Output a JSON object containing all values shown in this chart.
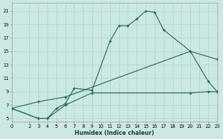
{
  "xlabel": "Humidex (Indice chaleur)",
  "bg_color": "#cce8e4",
  "grid_color": "#aacfcb",
  "line_color": "#1a6b5a",
  "xlim": [
    0,
    23
  ],
  "ylim": [
    4.5,
    22.2
  ],
  "xticks": [
    0,
    2,
    3,
    4,
    5,
    6,
    7,
    8,
    9,
    10,
    11,
    12,
    13,
    14,
    15,
    16,
    17,
    18,
    19,
    20,
    21,
    22,
    23
  ],
  "yticks": [
    5,
    7,
    9,
    11,
    13,
    15,
    17,
    19,
    21
  ],
  "line1_x": [
    0,
    3,
    4,
    5,
    6,
    7,
    9,
    11,
    12,
    13,
    14,
    15,
    16,
    17,
    20,
    22,
    23
  ],
  "line1_y": [
    6.5,
    5.0,
    5.0,
    6.5,
    7.2,
    9.5,
    9.2,
    16.5,
    18.8,
    18.8,
    19.8,
    21.0,
    20.8,
    18.2,
    15.0,
    10.5,
    9.0
  ],
  "line2_x": [
    0,
    3,
    6,
    20,
    23
  ],
  "line2_y": [
    6.5,
    7.5,
    8.2,
    15.0,
    13.8
  ],
  "line3_x": [
    0,
    3,
    4,
    6,
    9,
    20,
    22,
    23
  ],
  "line3_y": [
    6.5,
    5.0,
    5.0,
    7.0,
    8.8,
    8.8,
    9.0,
    9.0
  ]
}
